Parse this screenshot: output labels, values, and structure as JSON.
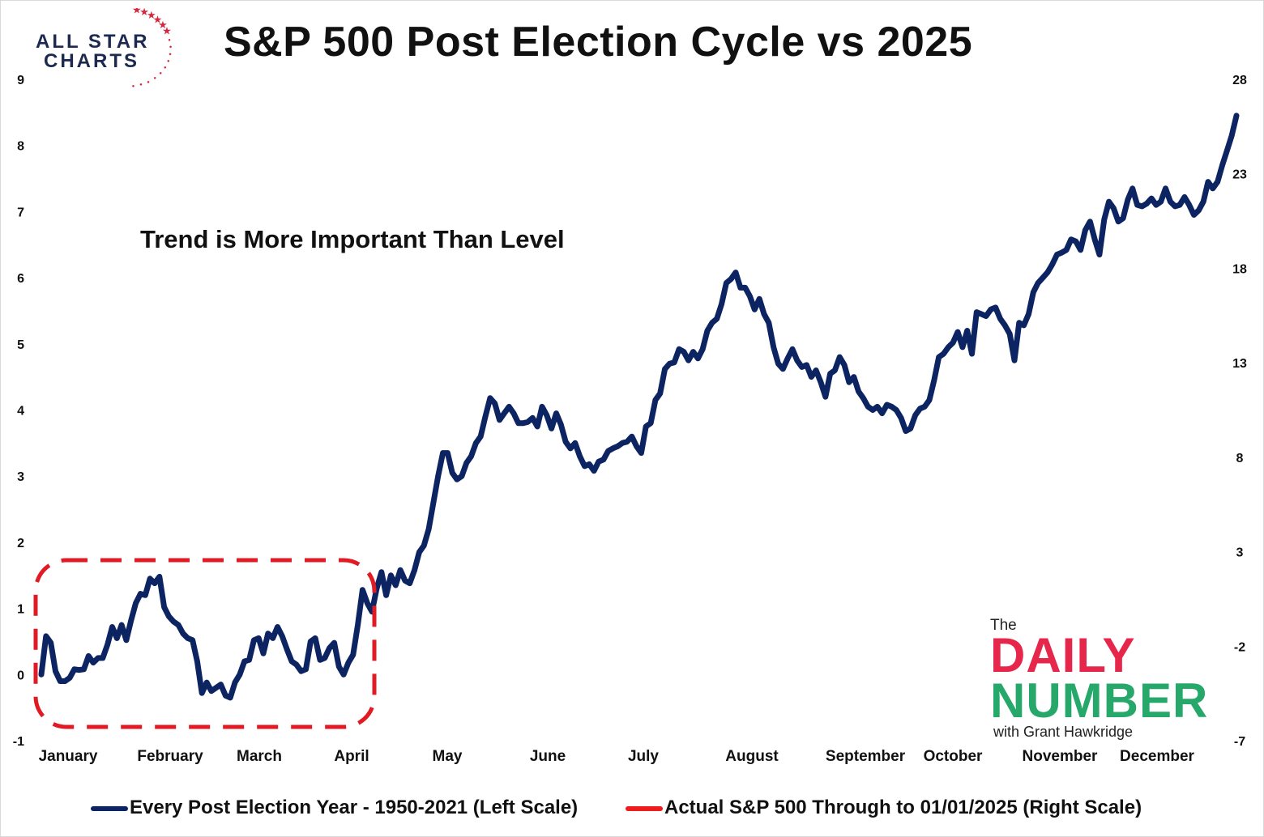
{
  "title": "S&P 500 Post Election Cycle vs 2025",
  "annotation": "Trend is More Important Than Level",
  "logo": {
    "line1": "ALL STAR",
    "line2": "CHARTS",
    "star_color": "#d7263d",
    "text_color": "#1c2a4f"
  },
  "badge": {
    "the": "The",
    "word1": "DAILY",
    "word2": "NUMBER",
    "byline": "with Grant Hawkridge",
    "color1": "#e6264a",
    "color2": "#26a86a"
  },
  "legend": {
    "series1": "Every Post Election Year - 1950-2021 (Left Scale)",
    "series2": "Actual S&P 500 Through to 01/01/2025 (Right Scale)"
  },
  "colors": {
    "series1": "#0d2463",
    "series2": "#ee1c1c",
    "box": "#e01b24"
  },
  "chart_data": {
    "type": "line",
    "left_axis": {
      "ticks": [
        -1,
        0,
        1,
        2,
        3,
        4,
        5,
        6,
        7,
        8,
        9
      ],
      "range": [
        -1,
        9
      ]
    },
    "right_axis": {
      "ticks": [
        -7,
        -2,
        3,
        8,
        13,
        18,
        23,
        28
      ],
      "range": [
        -7,
        28
      ]
    },
    "months": [
      "January",
      "February",
      "March",
      "April",
      "May",
      "June",
      "July",
      "August",
      "September",
      "October",
      "November",
      "December"
    ],
    "grid": false,
    "legend_position": "bottom",
    "series": [
      {
        "name": "Every Post Election Year - 1950-2021 (Left Scale)",
        "axis": "left",
        "values": [
          0.0,
          0.58,
          0.48,
          0.05,
          -0.1,
          -0.1,
          -0.05,
          0.08,
          0.07,
          0.08,
          0.28,
          0.18,
          0.25,
          0.25,
          0.45,
          0.72,
          0.55,
          0.75,
          0.52,
          0.82,
          1.08,
          1.22,
          1.2,
          1.45,
          1.38,
          1.48,
          1.02,
          0.88,
          0.8,
          0.75,
          0.62,
          0.55,
          0.52,
          0.2,
          -0.28,
          -0.12,
          -0.25,
          -0.2,
          -0.15,
          -0.32,
          -0.35,
          -0.12,
          0.0,
          0.2,
          0.22,
          0.52,
          0.55,
          0.32,
          0.62,
          0.55,
          0.72,
          0.58,
          0.38,
          0.2,
          0.15,
          0.05,
          0.08,
          0.5,
          0.55,
          0.22,
          0.25,
          0.4,
          0.48,
          0.12,
          0.0,
          0.18,
          0.3,
          0.75,
          1.28,
          1.08,
          0.95,
          1.3,
          1.55,
          1.2,
          1.5,
          1.35,
          1.58,
          1.42,
          1.38,
          1.58,
          1.85,
          1.95,
          2.2,
          2.6,
          3.0,
          3.35,
          3.35,
          3.05,
          2.95,
          3.0,
          3.2,
          3.3,
          3.5,
          3.6,
          3.9,
          4.18,
          4.1,
          3.85,
          3.95,
          4.05,
          3.95,
          3.8,
          3.8,
          3.82,
          3.88,
          3.75,
          4.05,
          3.92,
          3.72,
          3.95,
          3.78,
          3.52,
          3.42,
          3.5,
          3.3,
          3.15,
          3.18,
          3.08,
          3.22,
          3.25,
          3.38,
          3.42,
          3.45,
          3.5,
          3.52,
          3.6,
          3.45,
          3.35,
          3.75,
          3.8,
          4.15,
          4.25,
          4.62,
          4.7,
          4.72,
          4.92,
          4.88,
          4.75,
          4.88,
          4.78,
          4.92,
          5.2,
          5.32,
          5.38,
          5.6,
          5.92,
          5.98,
          6.08,
          5.85,
          5.85,
          5.72,
          5.52,
          5.68,
          5.45,
          5.32,
          4.95,
          4.7,
          4.62,
          4.78,
          4.92,
          4.75,
          4.65,
          4.68,
          4.5,
          4.6,
          4.42,
          4.2,
          4.55,
          4.6,
          4.8,
          4.68,
          4.42,
          4.5,
          4.28,
          4.18,
          4.05,
          4.0,
          4.05,
          3.95,
          4.08,
          4.05,
          4.0,
          3.88,
          3.68,
          3.72,
          3.92,
          4.02,
          4.05,
          4.15,
          4.45,
          4.8,
          4.85,
          4.95,
          5.02,
          5.18,
          4.95,
          5.2,
          4.85,
          5.48,
          5.45,
          5.42,
          5.52,
          5.55,
          5.38,
          5.28,
          5.15,
          4.75,
          5.32,
          5.28,
          5.45,
          5.78,
          5.92,
          6.0,
          6.08,
          6.2,
          6.35,
          6.38,
          6.42,
          6.58,
          6.55,
          6.42,
          6.72,
          6.85,
          6.58,
          6.35,
          6.88,
          7.15,
          7.05,
          6.85,
          6.9,
          7.18,
          7.35,
          7.1,
          7.08,
          7.12,
          7.2,
          7.1,
          7.15,
          7.35,
          7.15,
          7.08,
          7.1,
          7.22,
          7.1,
          6.95,
          7.02,
          7.15,
          7.45,
          7.35,
          7.45,
          7.7,
          7.92,
          8.15,
          8.45
        ]
      },
      {
        "name": "Actual S&P 500 Through to 01/01/2025 (Right Scale)",
        "axis": "right",
        "values": []
      }
    ]
  }
}
